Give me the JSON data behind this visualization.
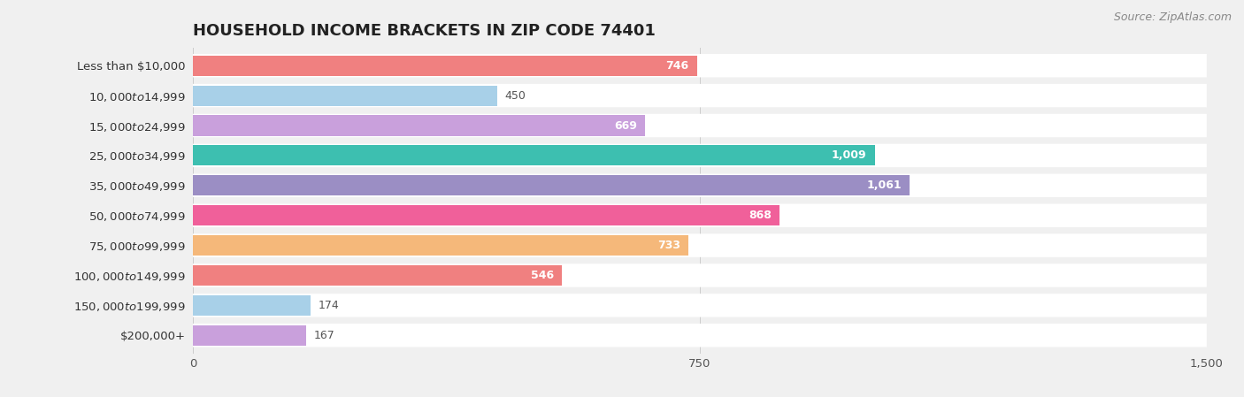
{
  "title": "HOUSEHOLD INCOME BRACKETS IN ZIP CODE 74401",
  "source": "Source: ZipAtlas.com",
  "categories": [
    "Less than $10,000",
    "$10,000 to $14,999",
    "$15,000 to $24,999",
    "$25,000 to $34,999",
    "$35,000 to $49,999",
    "$50,000 to $74,999",
    "$75,000 to $99,999",
    "$100,000 to $149,999",
    "$150,000 to $199,999",
    "$200,000+"
  ],
  "values": [
    746,
    450,
    669,
    1009,
    1061,
    868,
    733,
    546,
    174,
    167
  ],
  "bar_colors": [
    "#F08080",
    "#A8D0E8",
    "#C9A0DC",
    "#3DBFB0",
    "#9B8EC4",
    "#F0609A",
    "#F5B87A",
    "#F08080",
    "#A8D0E8",
    "#C9A0DC"
  ],
  "xlim": [
    0,
    1500
  ],
  "xticks": [
    0,
    750,
    1500
  ],
  "background_color": "#f0f0f0",
  "bar_background_color": "#ffffff",
  "title_fontsize": 13,
  "label_fontsize": 9.5,
  "value_fontsize": 9,
  "source_fontsize": 9,
  "value_inside_threshold": 500
}
